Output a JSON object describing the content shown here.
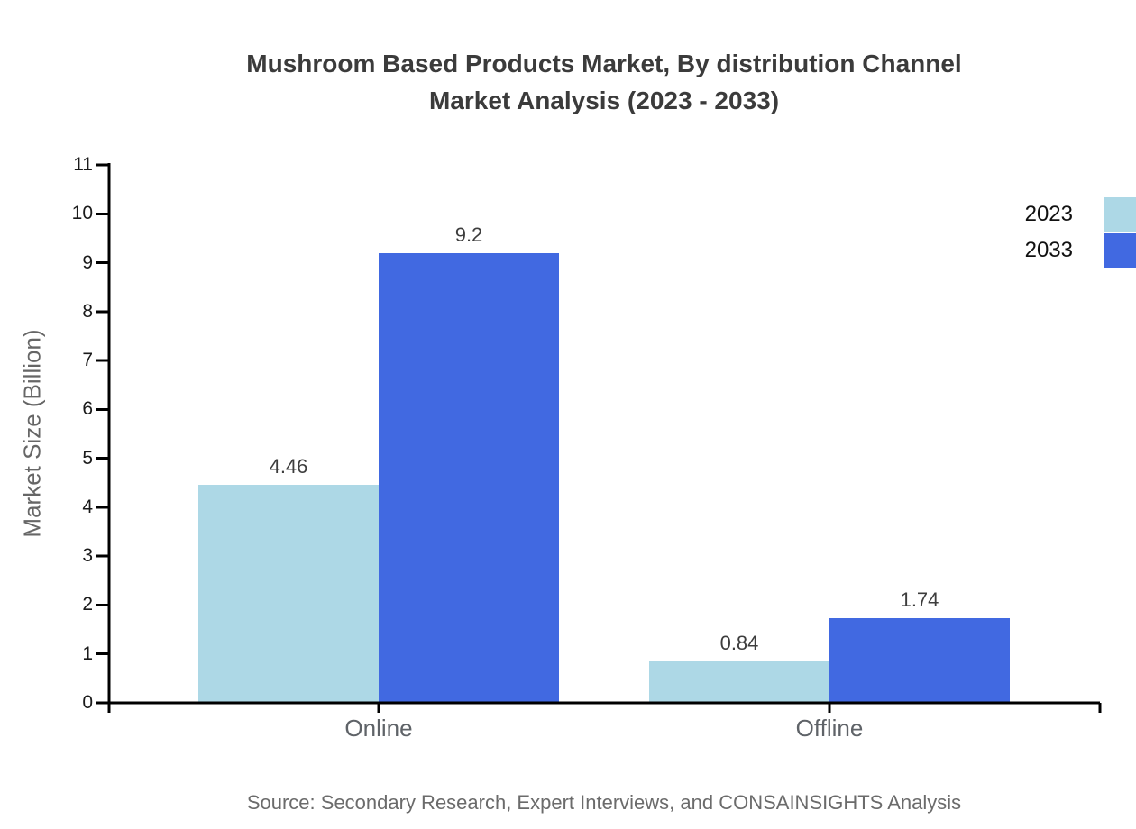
{
  "window": {
    "background": "#ffffff"
  },
  "title": {
    "line1": "Mushroom Based Products Market, By distribution Channel",
    "line2": "Market Analysis (2023 - 2033)"
  },
  "source_note": "Source: Secondary Research, Expert Interviews, and CONSAINSIGHTS Analysis",
  "chart_data": {
    "type": "bar",
    "title": "Mushroom Based Products Market, By distribution Channel Market Analysis (2023 - 2033)",
    "categories": [
      "Online",
      "Offline"
    ],
    "series": [
      {
        "name": "2023",
        "color": "#ADD8E6",
        "values": [
          4.46,
          0.84
        ]
      },
      {
        "name": "2033",
        "color": "#4169E1",
        "values": [
          9.2,
          1.74
        ]
      }
    ],
    "value_labels": [
      [
        "4.46",
        "9.2"
      ],
      [
        "0.84",
        "1.74"
      ]
    ],
    "xlabel": "",
    "ylabel": "Market Size (Billion)",
    "ylim": [
      0,
      11
    ],
    "yticks": [
      0,
      1,
      2,
      3,
      4,
      5,
      6,
      7,
      8,
      9,
      10,
      11
    ],
    "grid": false,
    "legend_position": "top-right",
    "bar_value_labels_shown": true
  },
  "colors": {
    "axis": "#000000",
    "title_text": "#3b3b3b",
    "tick_label_text": "#1a1a1a",
    "category_label_text": "#5f6368",
    "value_label_text": "#3d3d3d",
    "axis_title_text": "#666666",
    "legend_label_text": "#111111",
    "source_text": "#6b6b6b",
    "series_2023": "#ADD8E6",
    "series_2033": "#4169E1"
  }
}
